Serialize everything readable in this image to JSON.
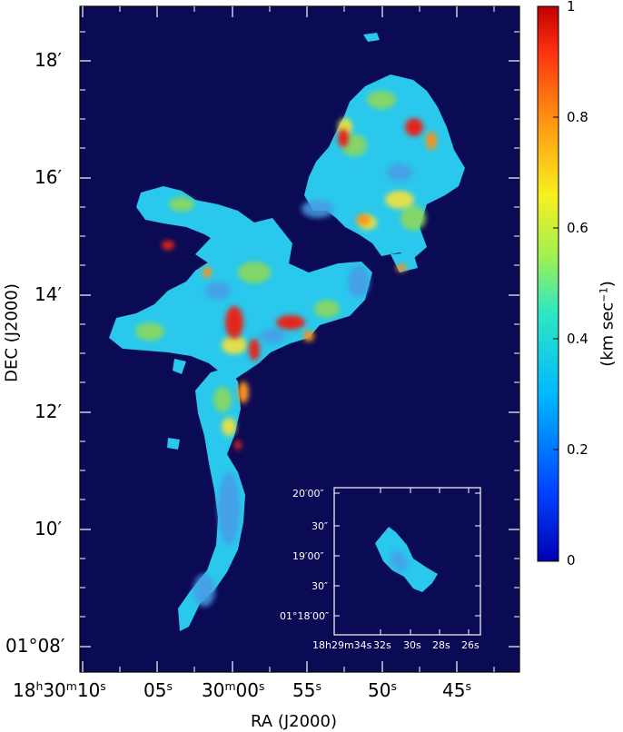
{
  "figure": {
    "type": "astronomical velocity-dispersion map",
    "y_axis": {
      "title": "DEC (J2000)",
      "ticks": [
        {
          "main": "18",
          "unit": "′"
        },
        {
          "main": "16",
          "unit": "′"
        },
        {
          "main": "14",
          "unit": "′"
        },
        {
          "main": "12",
          "unit": "′"
        },
        {
          "main": "10",
          "unit": "′"
        },
        {
          "main": "01°08",
          "unit": "′"
        }
      ]
    },
    "x_axis": {
      "title": "RA (J2000)",
      "ticks": [
        {
          "pre": "18",
          "h": "h",
          "mid": "30",
          "m": "m",
          "post": "10",
          "s": "s"
        },
        {
          "post": "05",
          "s": "s"
        },
        {
          "mid": "30",
          "m": "m",
          "post": "00",
          "s": "s"
        },
        {
          "post": "55",
          "s": "s"
        },
        {
          "post": "50",
          "s": "s"
        },
        {
          "post": "45",
          "s": "s"
        }
      ]
    },
    "colorbar": {
      "label": "(km sec",
      "label_sup": "−1",
      "label_close": ")",
      "range": [
        0,
        1
      ],
      "ticks": [
        "1",
        "0.8",
        "0.6",
        "0.4",
        "0.2",
        "0"
      ],
      "colormap": "jet"
    },
    "inset": {
      "y_ticks": [
        "20′00″",
        "30″",
        "19′00″",
        "30″",
        "01°18′00″"
      ],
      "x_ticks": [
        "18h29m34s",
        "32s",
        "30s",
        "28s",
        "26s"
      ]
    },
    "colors": {
      "background": "#0b0a55",
      "cyan": "#29c8ec",
      "light_blue": "#4a9be6",
      "green": "#8cd85c",
      "yellow": "#f4e23a",
      "orange": "#f7931e",
      "red": "#e3261a"
    }
  }
}
